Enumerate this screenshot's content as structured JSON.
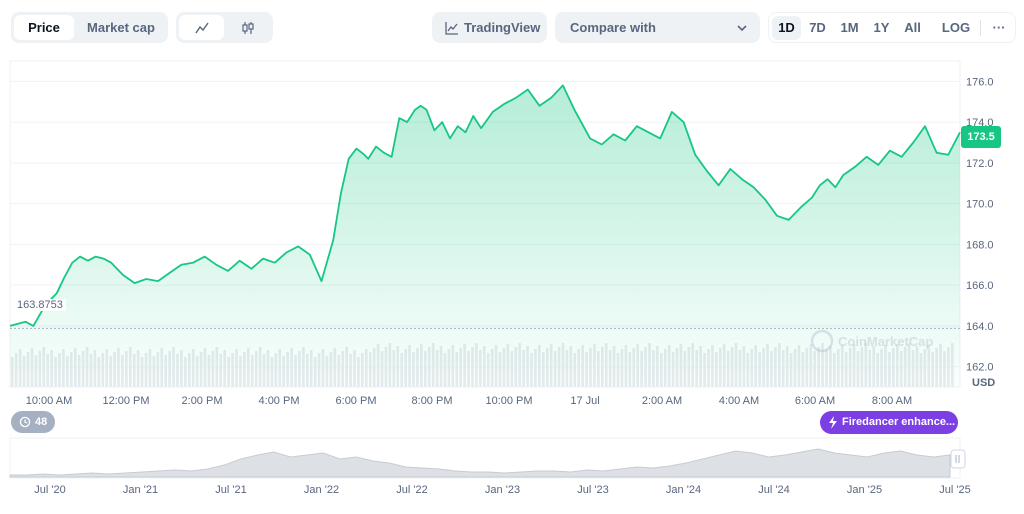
{
  "toolbar": {
    "view_tabs": [
      "Price",
      "Market cap"
    ],
    "tradingview_label": "TradingView",
    "compare_placeholder": "Compare with",
    "ranges": [
      "1D",
      "7D",
      "1M",
      "1Y",
      "All"
    ],
    "active_range": "1D",
    "log_label": "LOG",
    "more_label": "···"
  },
  "chart": {
    "current_price_badge": "173.5",
    "open_price_label": "163.8753",
    "y_unit": "USD",
    "watermark": "CoinMarketCap",
    "event_count": "48",
    "event_label": "Firedancer enhance...",
    "colors": {
      "line": "#16c784",
      "fill": "#16c784",
      "badge": "#16c784",
      "event": "#7b3fe4",
      "volume": "#e8ebef"
    }
  },
  "navigator": {
    "labels": [
      "Jul '20",
      "Jan '21",
      "Jul '21",
      "Jan '22",
      "Jul '22",
      "Jan '23",
      "Jul '23",
      "Jan '24",
      "Jul '24",
      "Jan '25",
      "Jul '25"
    ]
  },
  "chart_data": {
    "type": "area",
    "y_ticks": [
      162.0,
      164.0,
      166.0,
      168.0,
      170.0,
      172.0,
      174.0,
      176.0
    ],
    "x_tick_labels": [
      "10:00 AM",
      "12:00 PM",
      "2:00 PM",
      "4:00 PM",
      "6:00 PM",
      "8:00 PM",
      "10:00 PM",
      "17 Jul",
      "2:00 AM",
      "4:00 AM",
      "6:00 AM",
      "8:00 AM"
    ],
    "ylim": [
      161.0,
      177.0
    ],
    "xlim": [
      9.4,
      33.8
    ],
    "reference_line": 163.8753,
    "grid": true,
    "series": [
      {
        "x": [
          9.4,
          9.8,
          10.0,
          10.3,
          10.6,
          10.8,
          11.0,
          11.2,
          11.4,
          11.6,
          11.8,
          12.0,
          12.3,
          12.6,
          12.9,
          13.2,
          13.5,
          13.8,
          14.1,
          14.4,
          14.7,
          15.0,
          15.3,
          15.6,
          15.9,
          16.2,
          16.5,
          16.8,
          17.1,
          17.4,
          17.7,
          17.9,
          18.1,
          18.3,
          18.5,
          18.6,
          18.8,
          19.0,
          19.2,
          19.4,
          19.6,
          19.8,
          19.95,
          20.1,
          20.3,
          20.5,
          20.7,
          20.9,
          21.1,
          21.3,
          21.5,
          21.8,
          22.1,
          22.4,
          22.7,
          23.0,
          23.3,
          23.6,
          23.9,
          24.1,
          24.3,
          24.6,
          24.9,
          25.2,
          25.5,
          25.8,
          26.1,
          26.4,
          26.7,
          27.0,
          27.3,
          27.6,
          27.9,
          28.2,
          28.5,
          28.8,
          29.1,
          29.4,
          29.7,
          30.0,
          30.2,
          30.4,
          30.6,
          30.8,
          31.1,
          31.4,
          31.7,
          32.0,
          32.3,
          32.6,
          32.9,
          33.2,
          33.5,
          33.8
        ],
        "values": [
          164.0,
          164.2,
          164.0,
          165.0,
          165.6,
          166.4,
          167.1,
          167.4,
          167.2,
          167.4,
          167.3,
          167.1,
          166.5,
          166.1,
          166.3,
          166.2,
          166.6,
          167.0,
          167.1,
          167.4,
          167.0,
          166.7,
          167.2,
          166.8,
          167.3,
          167.1,
          167.6,
          167.9,
          167.5,
          166.2,
          168.2,
          170.5,
          172.2,
          172.7,
          172.4,
          172.2,
          172.8,
          172.5,
          172.3,
          174.2,
          174.0,
          174.6,
          174.8,
          174.6,
          173.6,
          174.0,
          173.2,
          173.8,
          173.5,
          174.3,
          173.7,
          174.5,
          174.9,
          175.2,
          175.6,
          174.8,
          175.2,
          175.8,
          174.6,
          173.9,
          173.2,
          172.9,
          173.4,
          173.1,
          173.8,
          173.5,
          173.2,
          174.5,
          174.0,
          172.4,
          171.6,
          170.9,
          171.7,
          171.2,
          170.8,
          170.2,
          169.4,
          169.2,
          169.8,
          170.3,
          170.9,
          171.2,
          170.8,
          171.4,
          171.8,
          172.3,
          171.9,
          172.6,
          172.3,
          173.0,
          173.8,
          172.5,
          172.4,
          173.5
        ]
      }
    ]
  }
}
